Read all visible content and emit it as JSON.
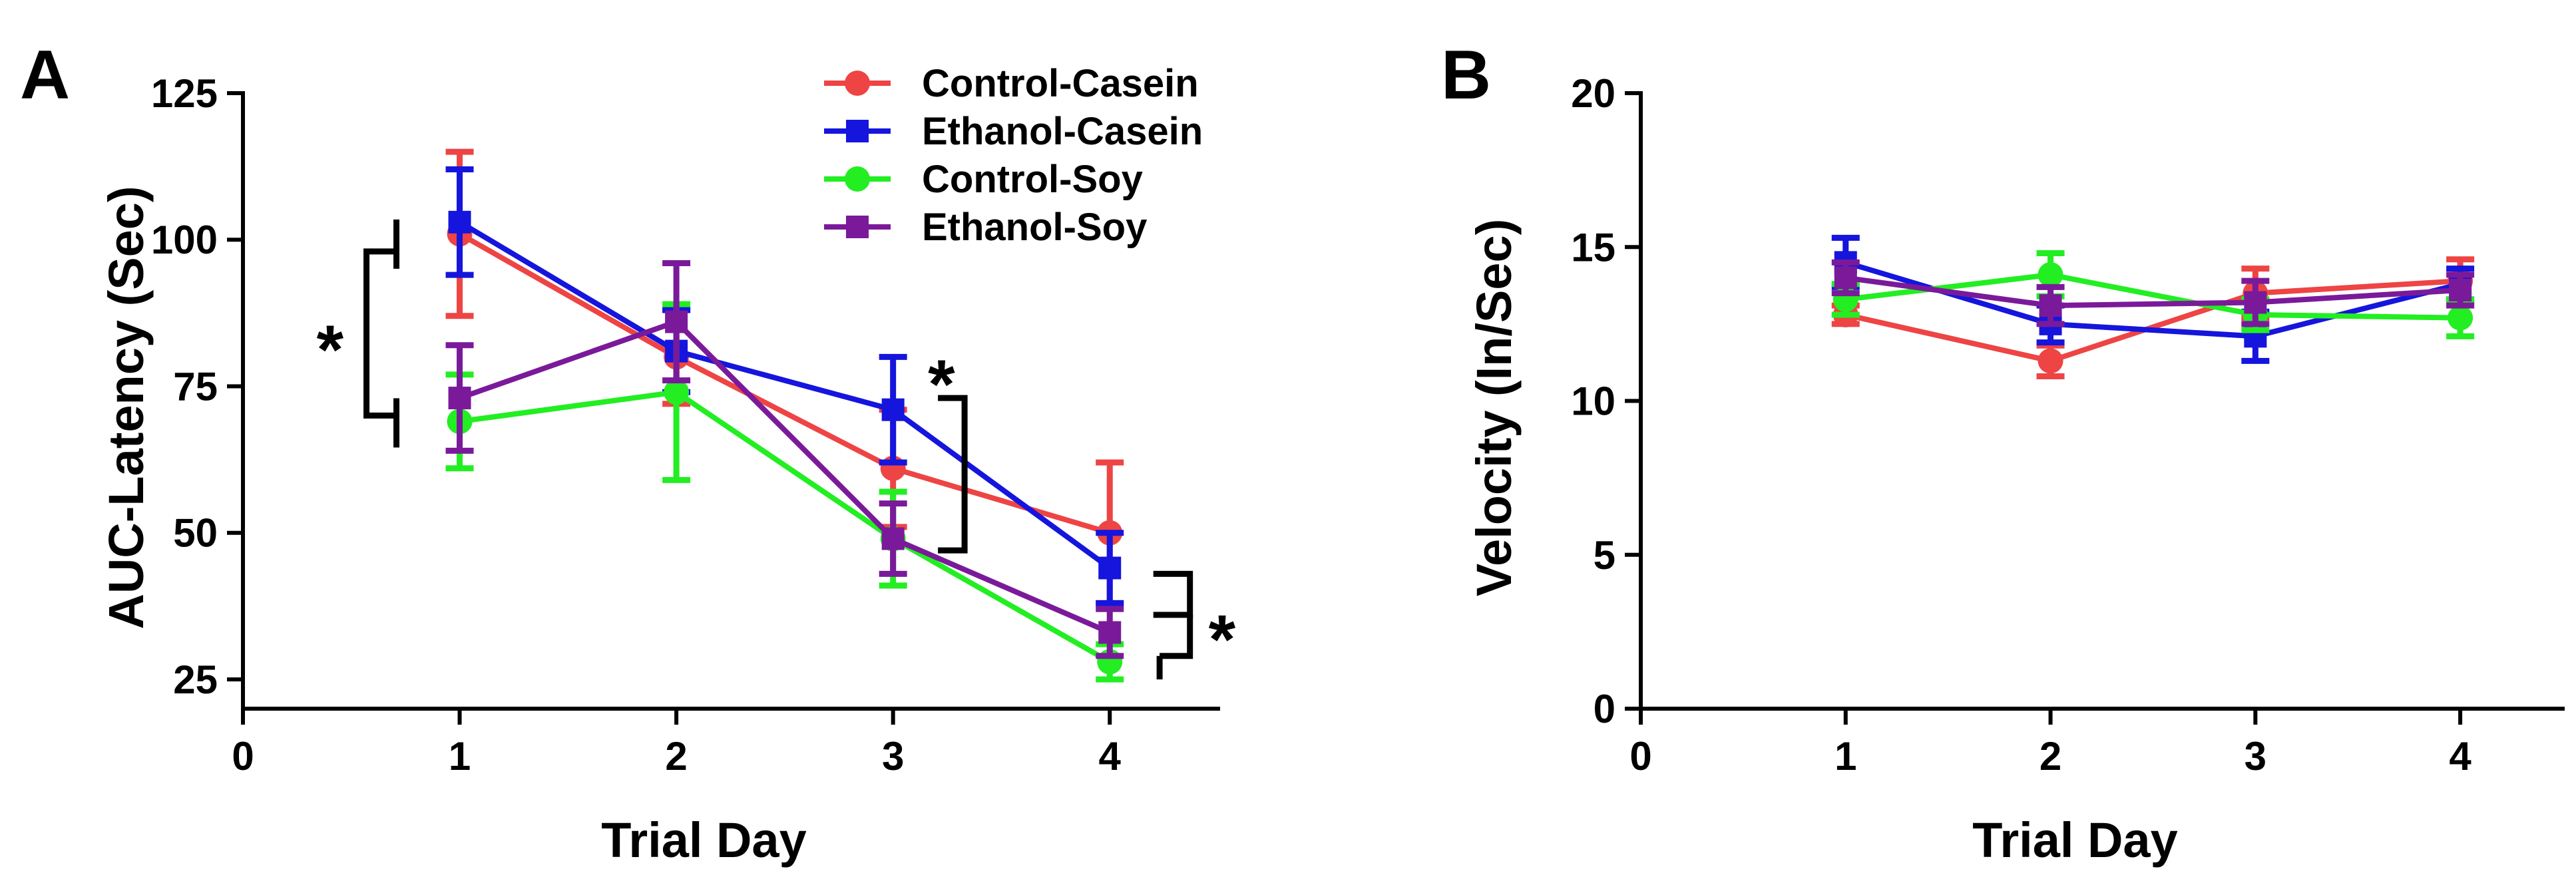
{
  "colors": {
    "Control-Casein": "#ee4444",
    "Ethanol-Casein": "#1515dd",
    "Control-Soy": "#22ee22",
    "Ethanol-Soy": "#7a1a9a"
  },
  "legend": [
    "Control-Casein",
    "Ethanol-Casein",
    "Control-Soy",
    "Ethanol-Soy"
  ],
  "significance_label": "*",
  "chart_data": [
    {
      "type": "line",
      "panel_label": "A",
      "title": "",
      "xlabel": "Trial Day",
      "ylabel": "AUC-Latency  (Sec)",
      "xlim": [
        0,
        4.5
      ],
      "ylim": [
        20,
        125
      ],
      "xticks": [
        0,
        1,
        2,
        3,
        4
      ],
      "yticks": [
        25,
        50,
        75,
        100,
        125
      ],
      "x": [
        1,
        2,
        3,
        4
      ],
      "series": [
        {
          "name": "Control-Casein",
          "marker": "circle",
          "values": [
            101,
            80,
            61,
            50
          ],
          "errors": [
            14,
            8,
            10,
            12
          ]
        },
        {
          "name": "Ethanol-Casein",
          "marker": "square",
          "values": [
            103,
            81,
            71,
            44
          ],
          "errors": [
            9,
            7,
            9,
            6
          ]
        },
        {
          "name": "Control-Soy",
          "marker": "circle",
          "values": [
            69,
            74,
            49,
            28
          ],
          "errors": [
            8,
            15,
            8,
            3
          ]
        },
        {
          "name": "Ethanol-Soy",
          "marker": "square",
          "values": [
            73,
            86,
            49,
            33
          ],
          "errors": [
            9,
            10,
            6,
            4
          ]
        }
      ],
      "annotations": [
        "*",
        "*",
        "*"
      ]
    },
    {
      "type": "line",
      "panel_label": "B",
      "title": "",
      "xlabel": "Trial Day",
      "ylabel": "Velocity (In/Sec)",
      "xlim": [
        0,
        4.5
      ],
      "ylim": [
        0,
        20
      ],
      "xticks": [
        0,
        1,
        2,
        3,
        4
      ],
      "yticks": [
        0,
        5,
        10,
        15,
        20
      ],
      "x": [
        1,
        2,
        3,
        4
      ],
      "series": [
        {
          "name": "Control-Casein",
          "marker": "circle",
          "values": [
            12.8,
            11.3,
            13.5,
            13.9
          ],
          "errors": [
            0.3,
            0.5,
            0.8,
            0.7
          ]
        },
        {
          "name": "Ethanol-Casein",
          "marker": "square",
          "values": [
            14.5,
            12.5,
            12.1,
            13.8
          ],
          "errors": [
            0.8,
            0.6,
            0.8,
            0.5
          ]
        },
        {
          "name": "Control-Soy",
          "marker": "circle",
          "values": [
            13.3,
            14.1,
            12.8,
            12.7
          ],
          "errors": [
            0.5,
            0.7,
            0.5,
            0.6
          ]
        },
        {
          "name": "Ethanol-Soy",
          "marker": "square",
          "values": [
            14.0,
            13.1,
            13.2,
            13.6
          ],
          "errors": [
            0.5,
            0.6,
            0.7,
            0.5
          ]
        }
      ]
    }
  ]
}
